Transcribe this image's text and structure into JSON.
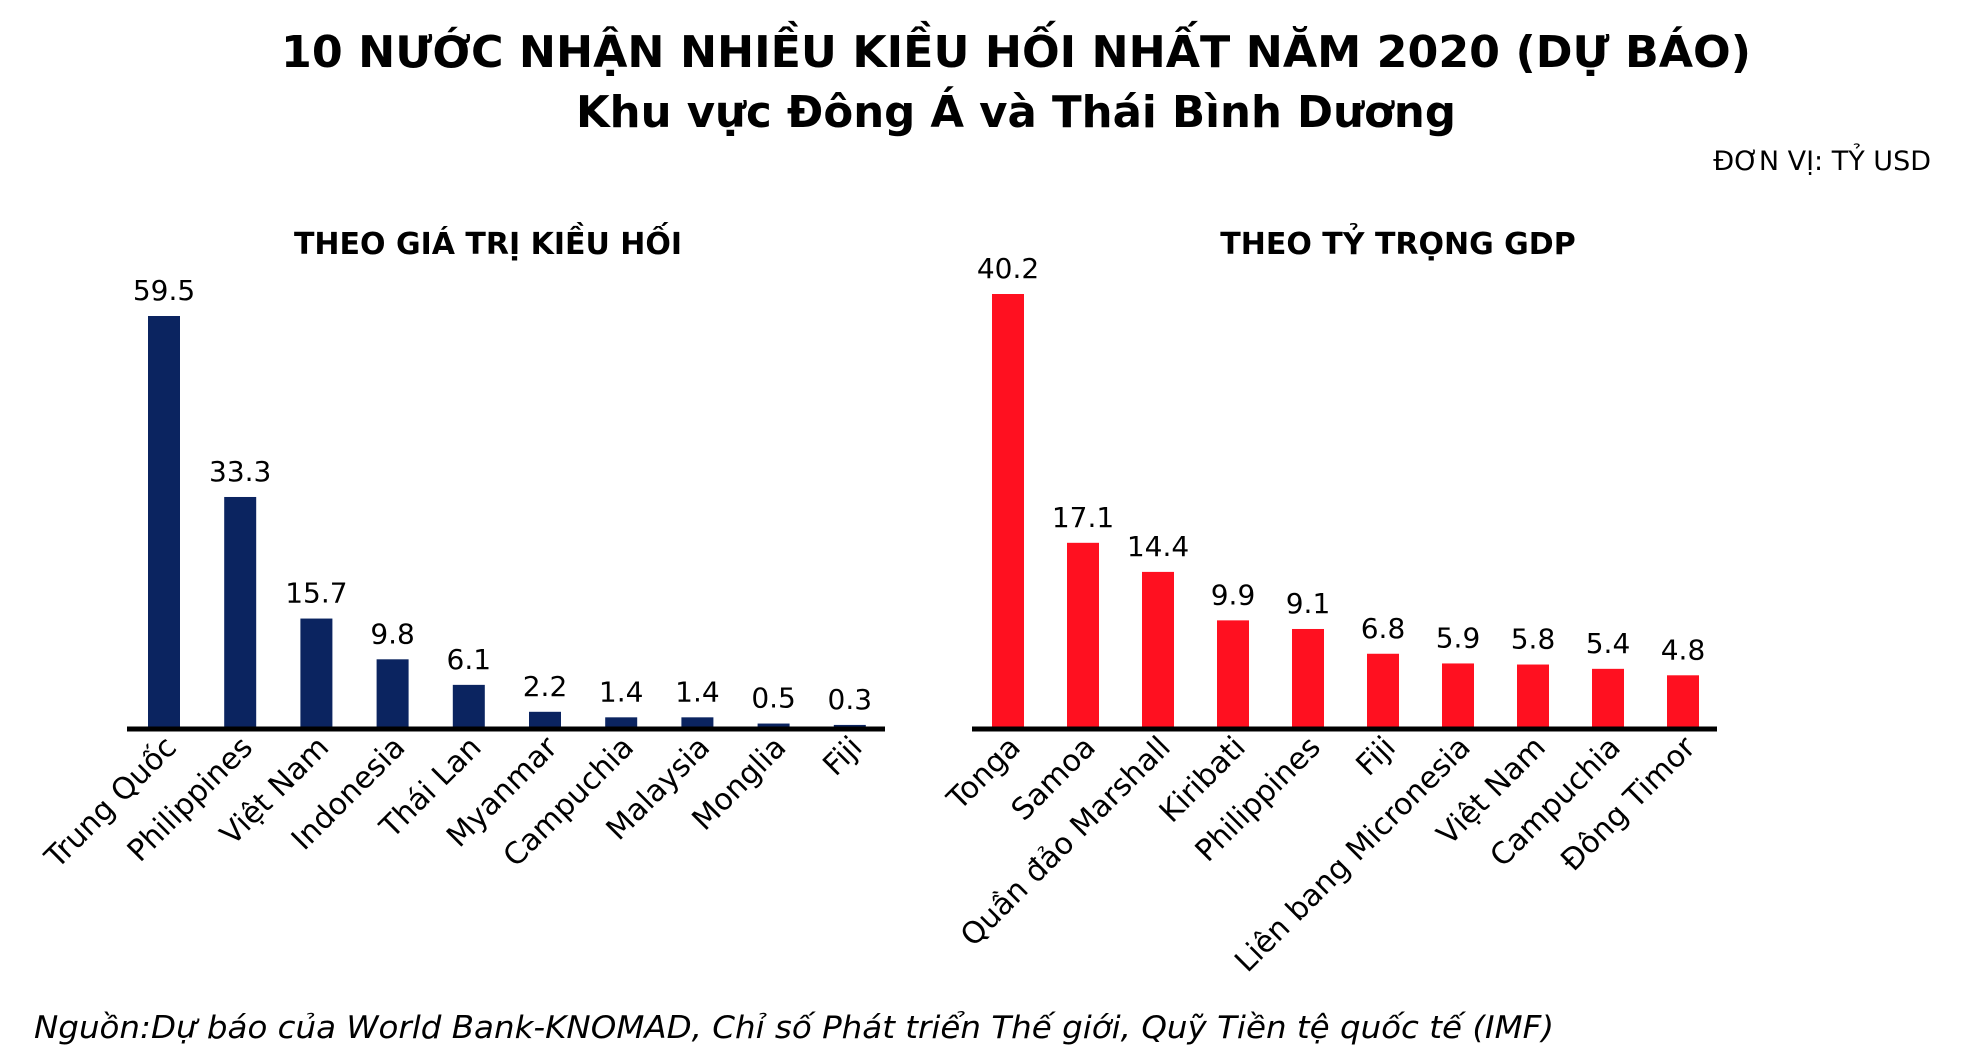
{
  "title": "10 NƯỚC NHẬN NHIỀU KIỀU HỐI NHẤT NĂM 2020 (DỰ BÁO)",
  "subtitle": "Khu vực Đông Á và Thái Bình Dương",
  "unit": "ĐƠN VỊ: TỶ USD",
  "source": "Nguồn:Dự báo của World Bank-KNOMAD, Chỉ số Phát triển Thế giới, Quỹ Tiền tệ quốc tế (IMF)",
  "chart_data": [
    {
      "type": "bar",
      "title": "THEO GIÁ TRỊ KIỀU HỐI",
      "color": "#0B2460",
      "categories": [
        "Trung Quốc",
        "Philippines",
        "Việt Nam",
        "Indonesia",
        "Thái Lan",
        "Myanmar",
        "Campuchia",
        "Malaysia",
        "Monglia",
        "Fiji"
      ],
      "values": [
        59.5,
        33.3,
        15.7,
        9.8,
        6.1,
        2.2,
        1.4,
        1.4,
        0.5,
        0.3
      ],
      "ylim": [
        0,
        59.5
      ],
      "grid": false
    },
    {
      "type": "bar",
      "title": "THEO TỶ TRỌNG GDP",
      "color": "#FF1020",
      "categories": [
        "Tonga",
        "Samoa",
        "Quần đảo Marshall",
        "Kiribati",
        "Philippines",
        "Fiji",
        "Liên bang Micronesia",
        "Việt Nam",
        "Campuchia",
        "Đông Timor"
      ],
      "values": [
        40.2,
        17.1,
        14.4,
        9.9,
        9.1,
        6.8,
        5.9,
        5.8,
        5.4,
        4.8
      ],
      "ylim": [
        0,
        40.2
      ],
      "grid": false
    }
  ]
}
